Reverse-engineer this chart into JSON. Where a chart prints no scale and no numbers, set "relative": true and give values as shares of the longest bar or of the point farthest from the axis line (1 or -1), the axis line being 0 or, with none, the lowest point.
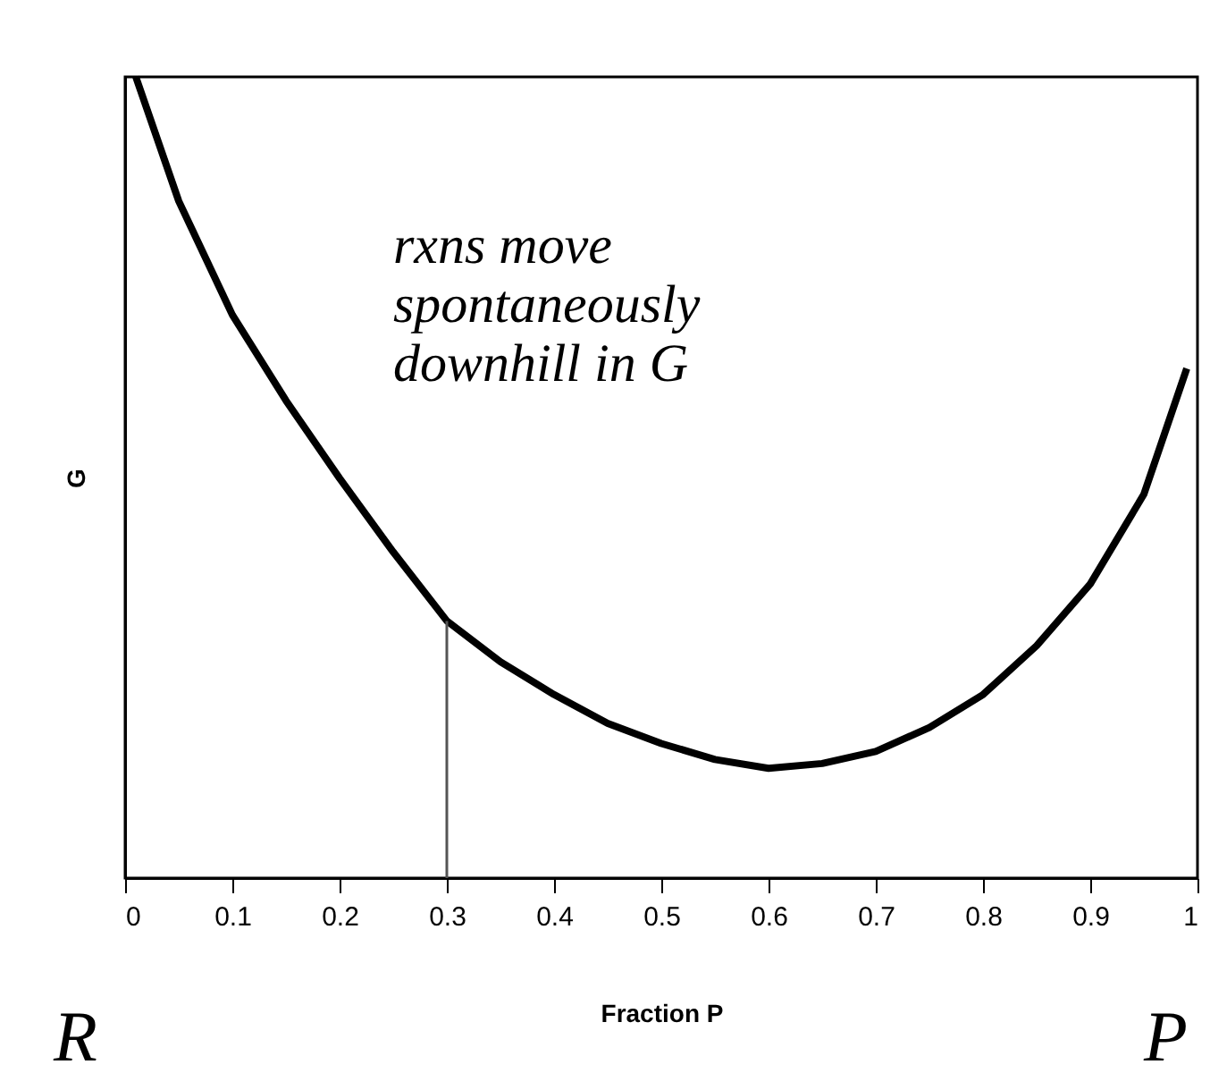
{
  "chart_data": {
    "type": "line",
    "relative": true,
    "xlabel": "Fraction P",
    "ylabel": "G",
    "x": [
      0.01,
      0.05,
      0.1,
      0.15,
      0.2,
      0.25,
      0.3,
      0.35,
      0.4,
      0.45,
      0.5,
      0.55,
      0.6,
      0.65,
      0.7,
      0.75,
      0.8,
      0.85,
      0.9,
      0.95,
      0.99
    ],
    "series": [
      {
        "color": "#000000",
        "values": [
          1,
          0.845,
          0.703,
          0.596,
          0.499,
          0.407,
          0.321,
          0.27,
          0.229,
          0.193,
          0.168,
          0.148,
          0.137,
          0.143,
          0.158,
          0.188,
          0.229,
          0.29,
          0.367,
          0.479,
          0.636
        ]
      }
    ],
    "xlim": [
      0,
      1
    ],
    "xticks": [
      0,
      0.1,
      0.2,
      0.3,
      0.4,
      0.5,
      0.6,
      0.7,
      0.8,
      0.9,
      1
    ],
    "ref_lines": [
      {
        "axis": "x",
        "value": 0.3,
        "color": "#555555"
      }
    ],
    "annotations": [
      "rxns move spontaneously downhill in G",
      "R",
      "P"
    ],
    "grid": false,
    "marker": "none",
    "line_style": "solid"
  }
}
